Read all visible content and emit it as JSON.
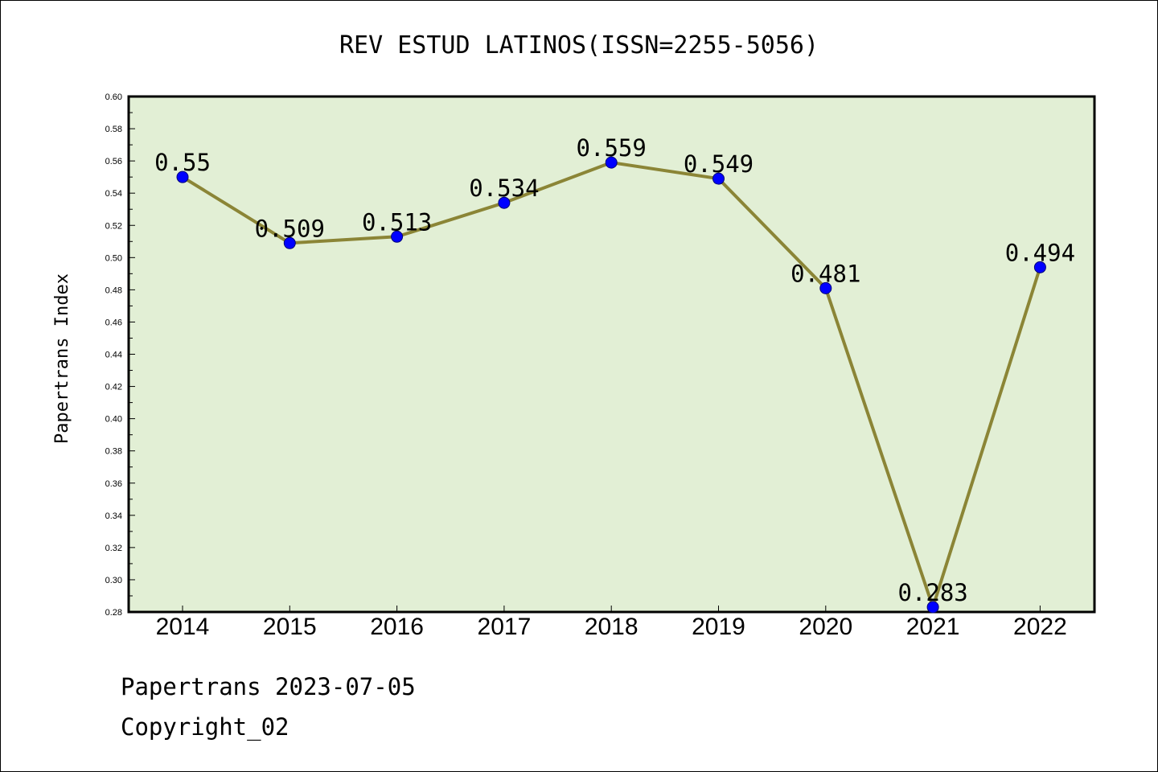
{
  "chart_data": {
    "type": "line",
    "title": "REV ESTUD LATINOS(ISSN=2255-5056)",
    "xlabel": "",
    "ylabel": "Papertrans Index",
    "categories": [
      "2014",
      "2015",
      "2016",
      "2017",
      "2018",
      "2019",
      "2020",
      "2021",
      "2022"
    ],
    "series": [
      {
        "values": [
          0.55,
          0.509,
          0.513,
          0.534,
          0.559,
          0.549,
          0.481,
          0.283,
          0.494
        ],
        "labels": [
          "0.55",
          "0.509",
          "0.513",
          "0.534",
          "0.559",
          "0.549",
          "0.481",
          "0.283",
          "0.494"
        ],
        "line_color": "#8B8536",
        "marker_color": "#0000FF"
      }
    ],
    "ylim": [
      0.28,
      0.6
    ],
    "yticks": [
      "0.28",
      "0.30",
      "0.32",
      "0.34",
      "0.36",
      "0.38",
      "0.40",
      "0.42",
      "0.44",
      "0.46",
      "0.48",
      "0.50",
      "0.52",
      "0.54",
      "0.56",
      "0.58",
      "0.60"
    ],
    "plot_background": "#E2EFD5",
    "grid": false,
    "legend": "none"
  },
  "footer": {
    "line1": "Papertrans 2023-07-05",
    "line2": "Copyright_02"
  }
}
